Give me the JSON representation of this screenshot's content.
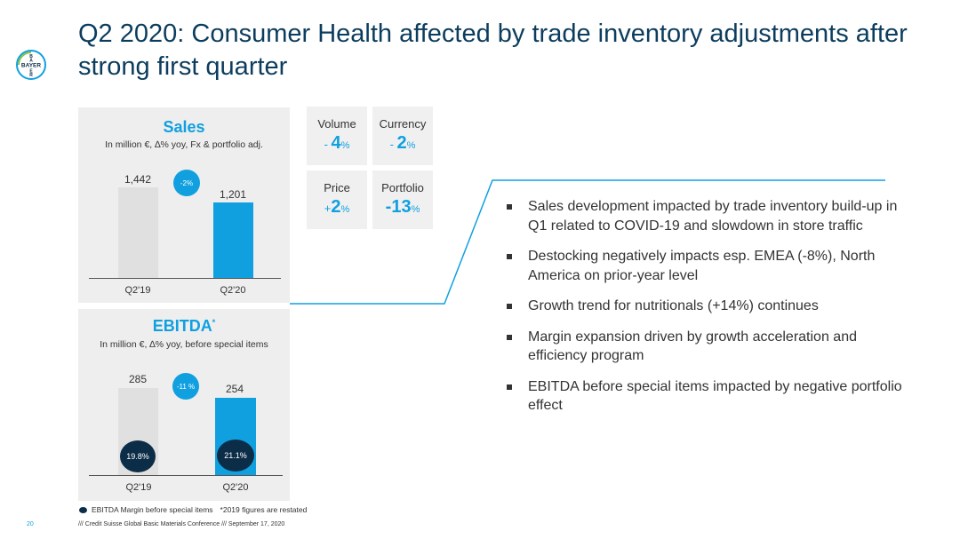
{
  "logo": {
    "text_horizontal": "BAYER",
    "text_vertical": "BAYER"
  },
  "title": "Q2 2020: Consumer Health affected by trade inventory adjustments after strong first quarter",
  "sales": {
    "title": "Sales",
    "subtitle": "In million €, ∆% yoy, Fx & portfolio adj.",
    "change": "-2%",
    "bars": [
      {
        "label": "Q2'19",
        "value": 1442,
        "value_text": "1,442",
        "color": "#e0e0e0"
      },
      {
        "label": "Q2'20",
        "value": 1201,
        "value_text": "1,201",
        "color": "#10a0e0"
      }
    ]
  },
  "ebitda": {
    "title": "EBITDA",
    "title_mark": "*",
    "subtitle": "In million €, ∆% yoy, before special items",
    "change": "-11 %",
    "bars": [
      {
        "label": "Q2'19",
        "value": 285,
        "value_text": "285",
        "margin": "19.8%",
        "color": "#e0e0e0"
      },
      {
        "label": "Q2'20",
        "value": 254,
        "value_text": "254",
        "margin": "21.1%",
        "color": "#10a0e0"
      }
    ]
  },
  "tiles": {
    "volume": {
      "label": "Volume",
      "sign": "- ",
      "number": "4",
      "unit": "%"
    },
    "currency": {
      "label": "Currency",
      "sign": "- ",
      "number": "2",
      "unit": "%"
    },
    "price": {
      "label": "Price",
      "sign": "+",
      "number": "2",
      "unit": "%"
    },
    "portfolio": {
      "label": "Portfolio",
      "sign": "",
      "number": "-13",
      "unit": "%"
    }
  },
  "bullets": [
    "Sales development impacted by trade inventory build-up in Q1 related to COVID-19 and slowdown in store traffic",
    "Destocking negatively impacts esp. EMEA (-8%), North America on prior-year level",
    "Growth trend for nutritionals (+14%) continues",
    "Margin expansion driven by growth acceleration and efficiency program",
    "EBITDA before special items impacted by negative portfolio effect"
  ],
  "legend": {
    "margin_label": "EBITDA Margin before special items",
    "restated_note": "*2019 figures are restated"
  },
  "page_number": "20",
  "footer": "/// Credit Suisse Global Basic Materials Conference /// September 17, 2020",
  "colors": {
    "accent": "#10a0e0",
    "navy": "#0c2d47",
    "title": "#0c3d5e"
  }
}
